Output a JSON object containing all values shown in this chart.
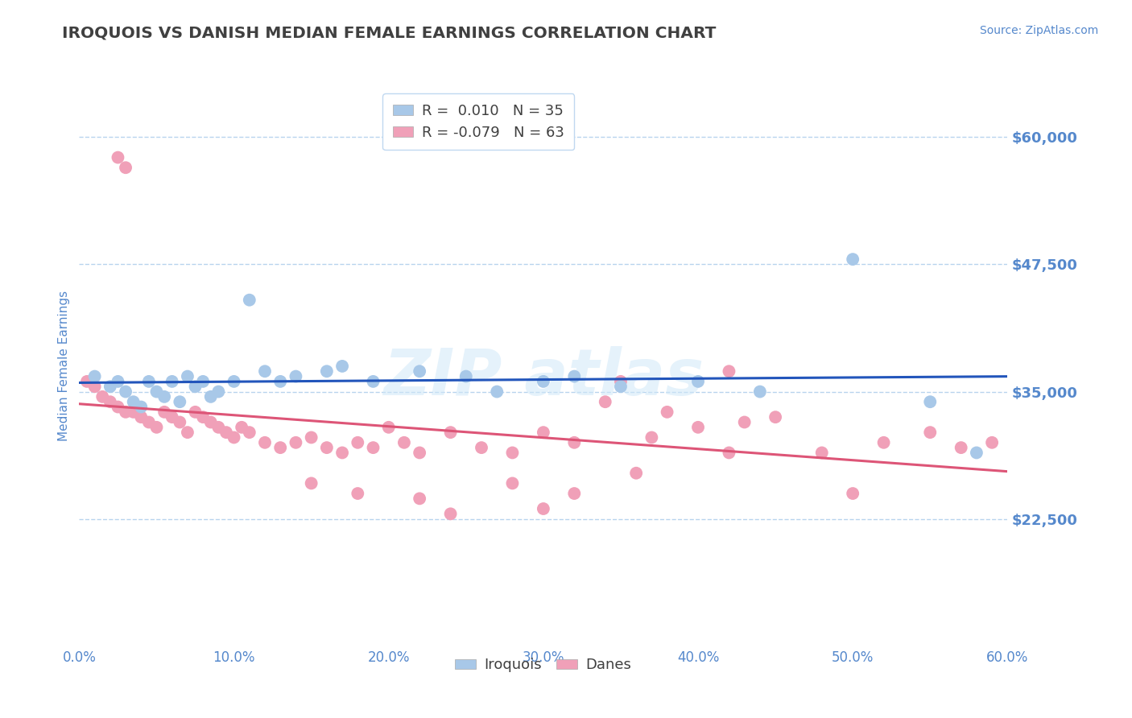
{
  "title": "IROQUOIS VS DANISH MEDIAN FEMALE EARNINGS CORRELATION CHART",
  "source_text": "Source: ZipAtlas.com",
  "ylabel": "Median Female Earnings",
  "xlim": [
    0.0,
    0.6
  ],
  "ylim": [
    10000,
    65000
  ],
  "yticks": [
    22500,
    35000,
    47500,
    60000
  ],
  "ytick_labels": [
    "$22,500",
    "$35,000",
    "$47,500",
    "$60,000"
  ],
  "xtick_labels": [
    "0.0%",
    "10.0%",
    "20.0%",
    "30.0%",
    "40.0%",
    "50.0%",
    "60.0%"
  ],
  "xticks": [
    0.0,
    0.1,
    0.2,
    0.3,
    0.4,
    0.5,
    0.6
  ],
  "iroquois_color": "#a8c8e8",
  "danes_color": "#f0a0b8",
  "iroquois_line_color": "#2255bb",
  "danes_line_color": "#dd5577",
  "iroquois_R": 0.01,
  "iroquois_N": 35,
  "danes_R": -0.079,
  "danes_N": 63,
  "background_color": "#ffffff",
  "grid_color": "#b8d4ee",
  "title_color": "#404040",
  "axis_label_color": "#5588cc",
  "tick_label_color": "#5588cc",
  "legend_edge_color": "#c0d8f0",
  "iroquois_x": [
    0.01,
    0.02,
    0.025,
    0.03,
    0.035,
    0.04,
    0.045,
    0.05,
    0.055,
    0.06,
    0.065,
    0.07,
    0.075,
    0.08,
    0.085,
    0.09,
    0.1,
    0.11,
    0.12,
    0.13,
    0.14,
    0.16,
    0.17,
    0.19,
    0.22,
    0.25,
    0.27,
    0.3,
    0.32,
    0.35,
    0.4,
    0.44,
    0.5,
    0.55,
    0.58
  ],
  "iroquois_y": [
    36500,
    35500,
    36000,
    35000,
    34000,
    33500,
    36000,
    35000,
    34500,
    36000,
    34000,
    36500,
    35500,
    36000,
    34500,
    35000,
    36000,
    44000,
    37000,
    36000,
    36500,
    37000,
    37500,
    36000,
    37000,
    36500,
    35000,
    36000,
    36500,
    35500,
    36000,
    35000,
    48000,
    34000,
    29000
  ],
  "danes_x": [
    0.005,
    0.01,
    0.015,
    0.02,
    0.025,
    0.03,
    0.035,
    0.04,
    0.045,
    0.05,
    0.055,
    0.06,
    0.065,
    0.07,
    0.075,
    0.08,
    0.085,
    0.09,
    0.095,
    0.1,
    0.105,
    0.11,
    0.12,
    0.13,
    0.14,
    0.15,
    0.16,
    0.17,
    0.18,
    0.19,
    0.2,
    0.21,
    0.22,
    0.24,
    0.26,
    0.28,
    0.3,
    0.32,
    0.34,
    0.37,
    0.4,
    0.43,
    0.45,
    0.48,
    0.52,
    0.55,
    0.57,
    0.59,
    0.025,
    0.03,
    0.35,
    0.38,
    0.42,
    0.32,
    0.28,
    0.22,
    0.18,
    0.15,
    0.24,
    0.3,
    0.36,
    0.42,
    0.5
  ],
  "danes_y": [
    36000,
    35500,
    34500,
    34000,
    33500,
    33000,
    33000,
    32500,
    32000,
    31500,
    33000,
    32500,
    32000,
    31000,
    33000,
    32500,
    32000,
    31500,
    31000,
    30500,
    31500,
    31000,
    30000,
    29500,
    30000,
    30500,
    29500,
    29000,
    30000,
    29500,
    31500,
    30000,
    29000,
    31000,
    29500,
    29000,
    31000,
    30000,
    34000,
    30500,
    31500,
    32000,
    32500,
    29000,
    30000,
    31000,
    29500,
    30000,
    58000,
    57000,
    36000,
    33000,
    37000,
    25000,
    26000,
    24500,
    25000,
    26000,
    23000,
    23500,
    27000,
    29000,
    25000
  ]
}
